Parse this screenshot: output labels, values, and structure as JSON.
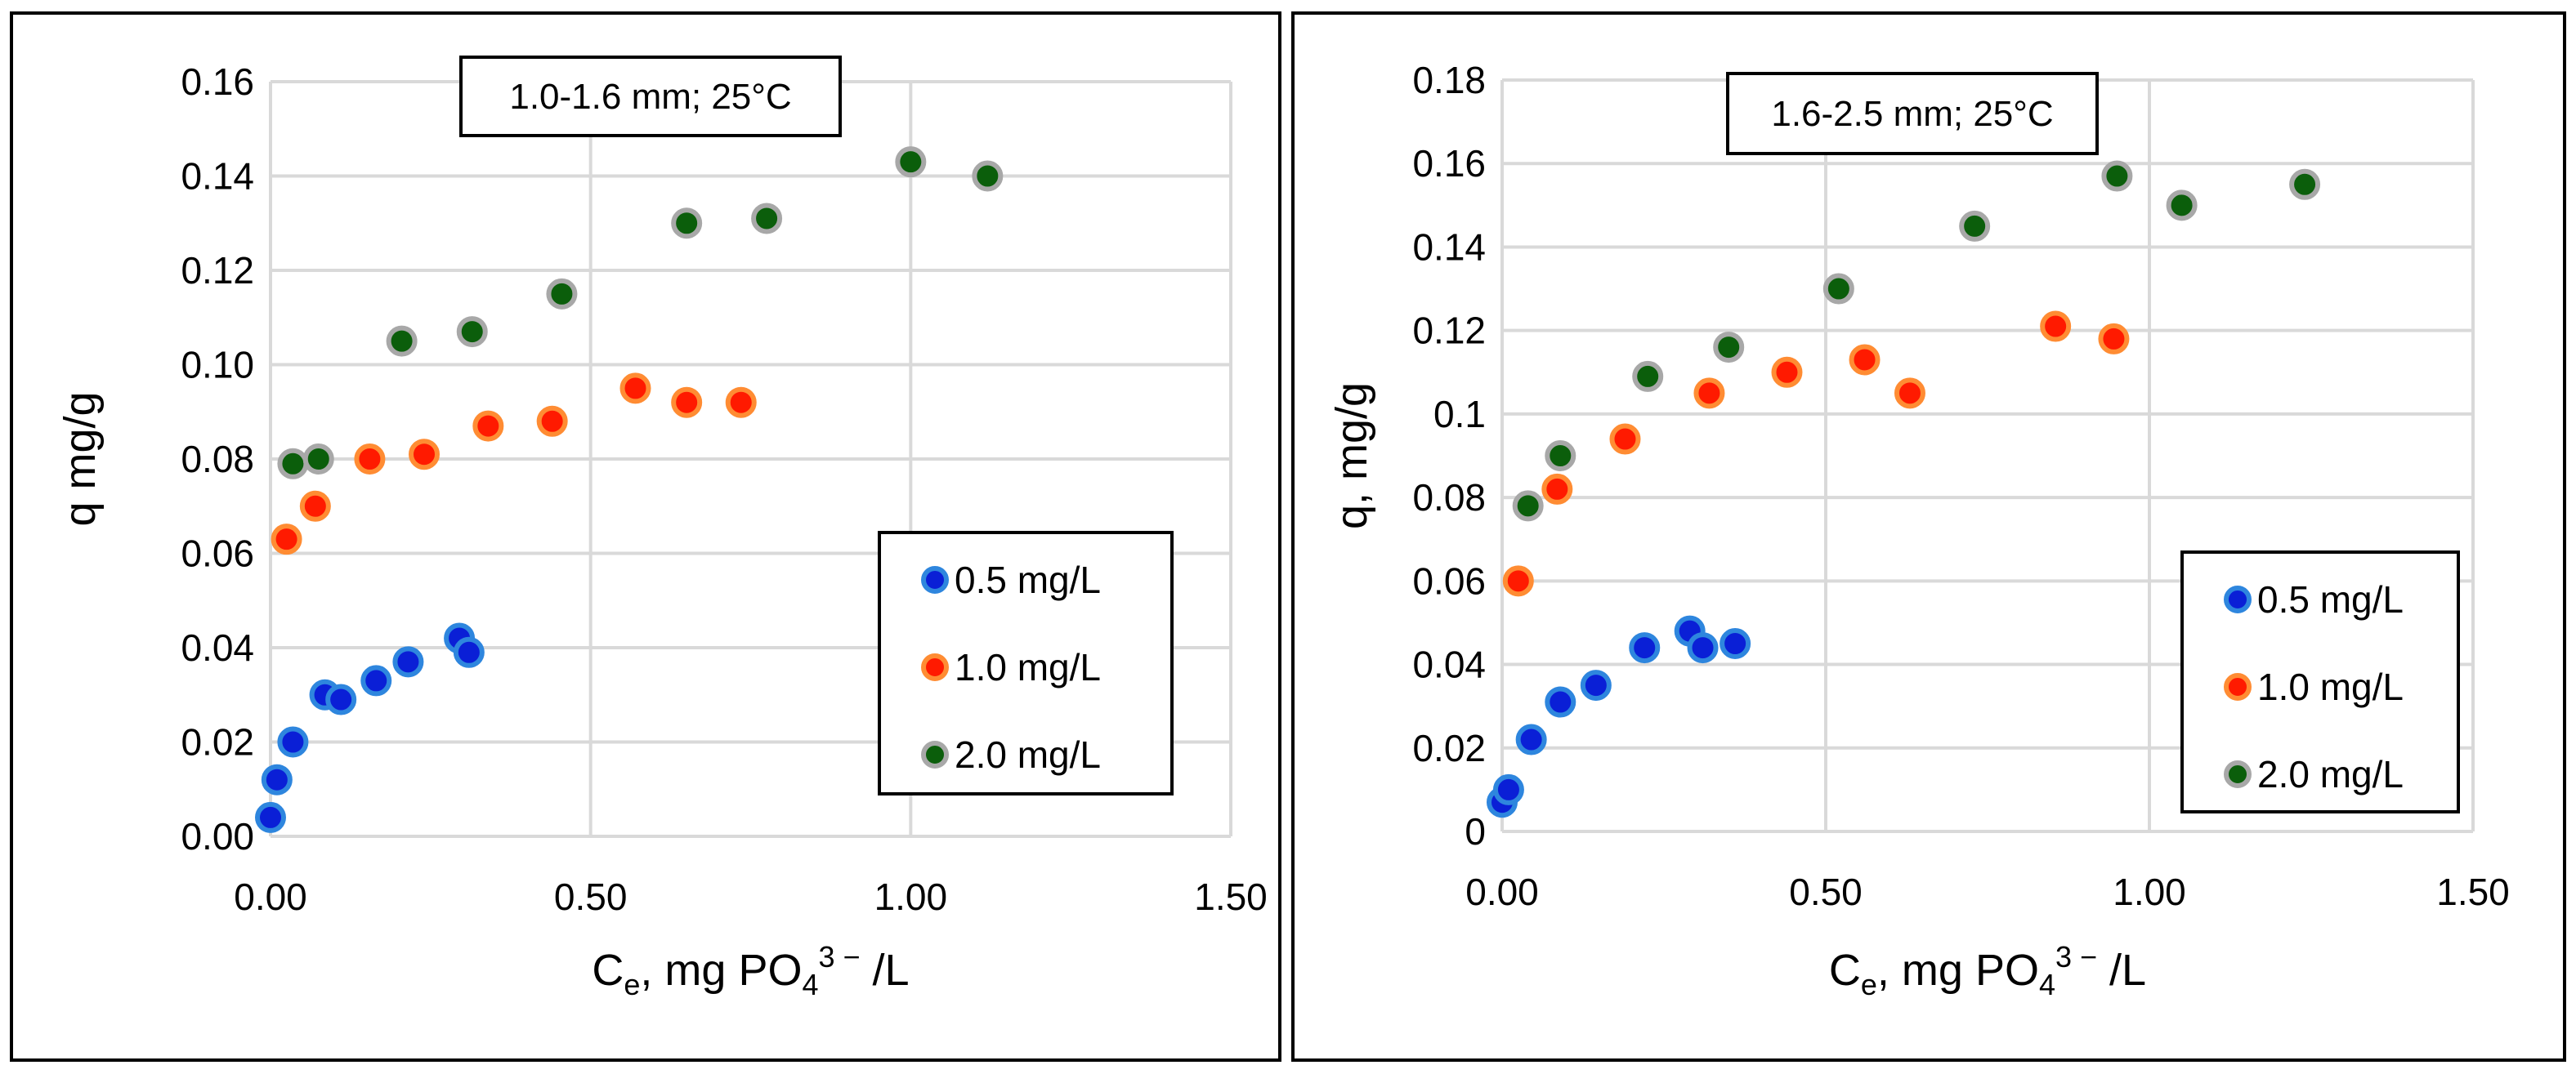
{
  "chart_data": [
    {
      "type": "scatter",
      "annotation": "1.0-1.6 mm; 25°C",
      "xlabel": {
        "main": "C",
        "sub": "e",
        "rest": ", mg PO",
        "sub2": "4",
        "sup": "3 −",
        "end": " /L"
      },
      "ylabel": "q mg/g",
      "xlim": [
        0,
        1.5
      ],
      "ylim": [
        0,
        0.16
      ],
      "xticks": [
        "0.00",
        "0.50",
        "1.00",
        "1.50"
      ],
      "yticks": [
        "0.00",
        "0.02",
        "0.04",
        "0.06",
        "0.08",
        "0.10",
        "0.12",
        "0.14",
        "0.16"
      ],
      "series": [
        {
          "name": "0.5 mg/L",
          "color": "#0a1fd6",
          "edge": "#2e86de",
          "points": [
            [
              0.0,
              0.004
            ],
            [
              0.01,
              0.012
            ],
            [
              0.035,
              0.02
            ],
            [
              0.085,
              0.03
            ],
            [
              0.11,
              0.029
            ],
            [
              0.165,
              0.033
            ],
            [
              0.215,
              0.037
            ],
            [
              0.295,
              0.042
            ],
            [
              0.31,
              0.039
            ]
          ]
        },
        {
          "name": "1.0 mg/L",
          "color": "#ff1a00",
          "edge": "#ff8c33",
          "points": [
            [
              0.025,
              0.063
            ],
            [
              0.07,
              0.07
            ],
            [
              0.155,
              0.08
            ],
            [
              0.24,
              0.081
            ],
            [
              0.34,
              0.087
            ],
            [
              0.44,
              0.088
            ],
            [
              0.57,
              0.095
            ],
            [
              0.65,
              0.092
            ],
            [
              0.735,
              0.092
            ]
          ]
        },
        {
          "name": "2.0 mg/L",
          "color": "#0b5e0b",
          "edge": "#a8a8a8",
          "points": [
            [
              0.035,
              0.079
            ],
            [
              0.075,
              0.08
            ],
            [
              0.205,
              0.105
            ],
            [
              0.315,
              0.107
            ],
            [
              0.455,
              0.115
            ],
            [
              0.65,
              0.13
            ],
            [
              0.775,
              0.131
            ],
            [
              1.0,
              0.143
            ],
            [
              1.12,
              0.14
            ]
          ]
        }
      ]
    },
    {
      "type": "scatter",
      "annotation": "1.6-2.5 mm; 25°C",
      "xlabel": {
        "main": "C",
        "sub": "e",
        "rest": ", mg PO",
        "sub2": "4",
        "sup": "3 −",
        "end": " /L"
      },
      "ylabel": "q, mg/g",
      "xlim": [
        0,
        1.5
      ],
      "ylim": [
        0,
        0.18
      ],
      "xticks": [
        "0.00",
        "0.50",
        "1.00",
        "1.50"
      ],
      "yticks": [
        "0",
        "0.02",
        "0.04",
        "0.06",
        "0.08",
        "0.1",
        "0.12",
        "0.14",
        "0.16",
        "0.18"
      ],
      "series": [
        {
          "name": "0.5 mg/L",
          "color": "#0a1fd6",
          "edge": "#2e86de",
          "points": [
            [
              0.0,
              0.007
            ],
            [
              0.01,
              0.01
            ],
            [
              0.045,
              0.022
            ],
            [
              0.09,
              0.031
            ],
            [
              0.145,
              0.035
            ],
            [
              0.22,
              0.044
            ],
            [
              0.29,
              0.048
            ],
            [
              0.31,
              0.044
            ],
            [
              0.36,
              0.045
            ]
          ]
        },
        {
          "name": "1.0 mg/L",
          "color": "#ff1a00",
          "edge": "#ff8c33",
          "points": [
            [
              0.025,
              0.06
            ],
            [
              0.085,
              0.082
            ],
            [
              0.19,
              0.094
            ],
            [
              0.32,
              0.105
            ],
            [
              0.44,
              0.11
            ],
            [
              0.56,
              0.113
            ],
            [
              0.63,
              0.105
            ],
            [
              0.855,
              0.121
            ],
            [
              0.945,
              0.118
            ]
          ]
        },
        {
          "name": "2.0 mg/L",
          "color": "#0b5e0b",
          "edge": "#a8a8a8",
          "points": [
            [
              0.04,
              0.078
            ],
            [
              0.09,
              0.09
            ],
            [
              0.225,
              0.109
            ],
            [
              0.35,
              0.116
            ],
            [
              0.52,
              0.13
            ],
            [
              0.73,
              0.145
            ],
            [
              0.95,
              0.157
            ],
            [
              1.05,
              0.15
            ],
            [
              1.24,
              0.155
            ]
          ]
        }
      ]
    }
  ]
}
